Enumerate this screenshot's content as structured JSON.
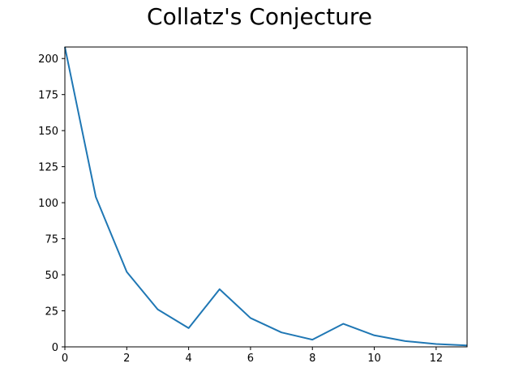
{
  "chart_data": {
    "type": "line",
    "title": "Collatz's Conjecture",
    "xlabel": "",
    "ylabel": "",
    "xlim": [
      0,
      13
    ],
    "ylim": [
      0,
      208
    ],
    "xticks": [
      0,
      2,
      4,
      6,
      8,
      10,
      12
    ],
    "yticks": [
      0,
      25,
      50,
      75,
      100,
      125,
      150,
      175,
      200
    ],
    "grid": false,
    "series": [
      {
        "color": "#1f77b4",
        "x": [
          0,
          1,
          2,
          3,
          4,
          5,
          6,
          7,
          8,
          9,
          10,
          11,
          12,
          13
        ],
        "y": [
          208,
          104,
          52,
          26,
          13,
          40,
          20,
          10,
          5,
          16,
          8,
          4,
          2,
          1
        ]
      }
    ]
  }
}
